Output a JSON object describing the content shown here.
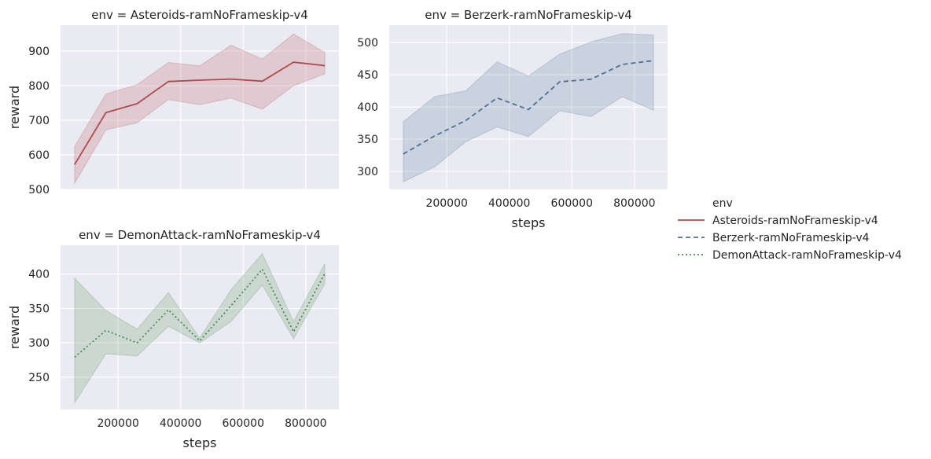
{
  "legend": {
    "title": "env",
    "entries": [
      {
        "label": "Asteroids-ramNoFrameskip-v4",
        "color": "#b04a4a",
        "dash": "solid"
      },
      {
        "label": "Berzerk-ramNoFrameskip-v4",
        "color": "#4c7194",
        "dash": "dashed"
      },
      {
        "label": "DemonAttack-ramNoFrameskip-v4",
        "color": "#4f8a4f",
        "dash": "dotted"
      }
    ],
    "placement": "right"
  },
  "style": {
    "panel_bg": "#eaeaf2",
    "grid_color": "#ffffff"
  },
  "chart_data": [
    {
      "type": "line",
      "title": "env = Asteroids-ramNoFrameskip-v4",
      "xlabel": "",
      "ylabel": "reward",
      "xlim": [
        16000,
        906000
      ],
      "ylim": [
        500,
        975
      ],
      "xticks": [
        200000,
        400000,
        600000,
        800000
      ],
      "xtick_labels": [],
      "yticks": [
        500,
        600,
        700,
        800,
        900
      ],
      "ytick_labels": [
        "500",
        "600",
        "700",
        "800",
        "900"
      ],
      "grid": true,
      "series": [
        {
          "name": "Asteroids-ramNoFrameskip-v4",
          "color": "#b04a4a",
          "dash": "solid",
          "x": [
            61000,
            161000,
            261000,
            361000,
            461000,
            561000,
            661000,
            761000,
            861000
          ],
          "y": [
            572,
            722,
            748,
            812,
            816,
            819,
            813,
            868,
            858
          ],
          "ci_low": [
            518,
            672,
            693,
            760,
            745,
            764,
            732,
            800,
            834
          ],
          "ci_high": [
            624,
            776,
            803,
            867,
            857,
            917,
            877,
            949,
            896
          ]
        }
      ]
    },
    {
      "type": "line",
      "title": "env = Berzerk-ramNoFrameskip-v4",
      "xlabel": "steps",
      "ylabel": "",
      "xlim": [
        16000,
        906000
      ],
      "ylim": [
        272,
        527
      ],
      "xticks": [
        200000,
        400000,
        600000,
        800000
      ],
      "xtick_labels": [
        "200000",
        "400000",
        "600000",
        "800000"
      ],
      "yticks": [
        300,
        350,
        400,
        450,
        500
      ],
      "ytick_labels": [
        "300",
        "350",
        "400",
        "450",
        "500"
      ],
      "grid": true,
      "series": [
        {
          "name": "Berzerk-ramNoFrameskip-v4",
          "color": "#4c7194",
          "dash": "dashed",
          "x": [
            61000,
            161000,
            261000,
            361000,
            461000,
            561000,
            661000,
            761000,
            861000
          ],
          "y": [
            327,
            355,
            379,
            414,
            396,
            439,
            443,
            466,
            472
          ],
          "ci_low": [
            284,
            307,
            346,
            369,
            354,
            394,
            385,
            416,
            395
          ],
          "ci_high": [
            377,
            416,
            425,
            470,
            448,
            482,
            501,
            514,
            512
          ]
        }
      ]
    },
    {
      "type": "line",
      "title": "env = DemonAttack-ramNoFrameskip-v4",
      "xlabel": "steps",
      "ylabel": "reward",
      "xlim": [
        16000,
        906000
      ],
      "ylim": [
        203,
        442
      ],
      "xticks": [
        200000,
        400000,
        600000,
        800000
      ],
      "xtick_labels": [
        "200000",
        "400000",
        "600000",
        "800000"
      ],
      "yticks": [
        250,
        300,
        350,
        400
      ],
      "ytick_labels": [
        "250",
        "300",
        "350",
        "400"
      ],
      "grid": true,
      "series": [
        {
          "name": "DemonAttack-ramNoFrameskip-v4",
          "color": "#4f8a4f",
          "dash": "dotted",
          "x": [
            61000,
            161000,
            261000,
            361000,
            461000,
            561000,
            661000,
            761000,
            861000
          ],
          "y": [
            279,
            318,
            300,
            348,
            303,
            354,
            407,
            316,
            401
          ],
          "ci_low": [
            213,
            284,
            281,
            324,
            300,
            331,
            384,
            306,
            386
          ],
          "ci_high": [
            394,
            347,
            320,
            373,
            307,
            377,
            430,
            331,
            415
          ]
        }
      ]
    }
  ]
}
